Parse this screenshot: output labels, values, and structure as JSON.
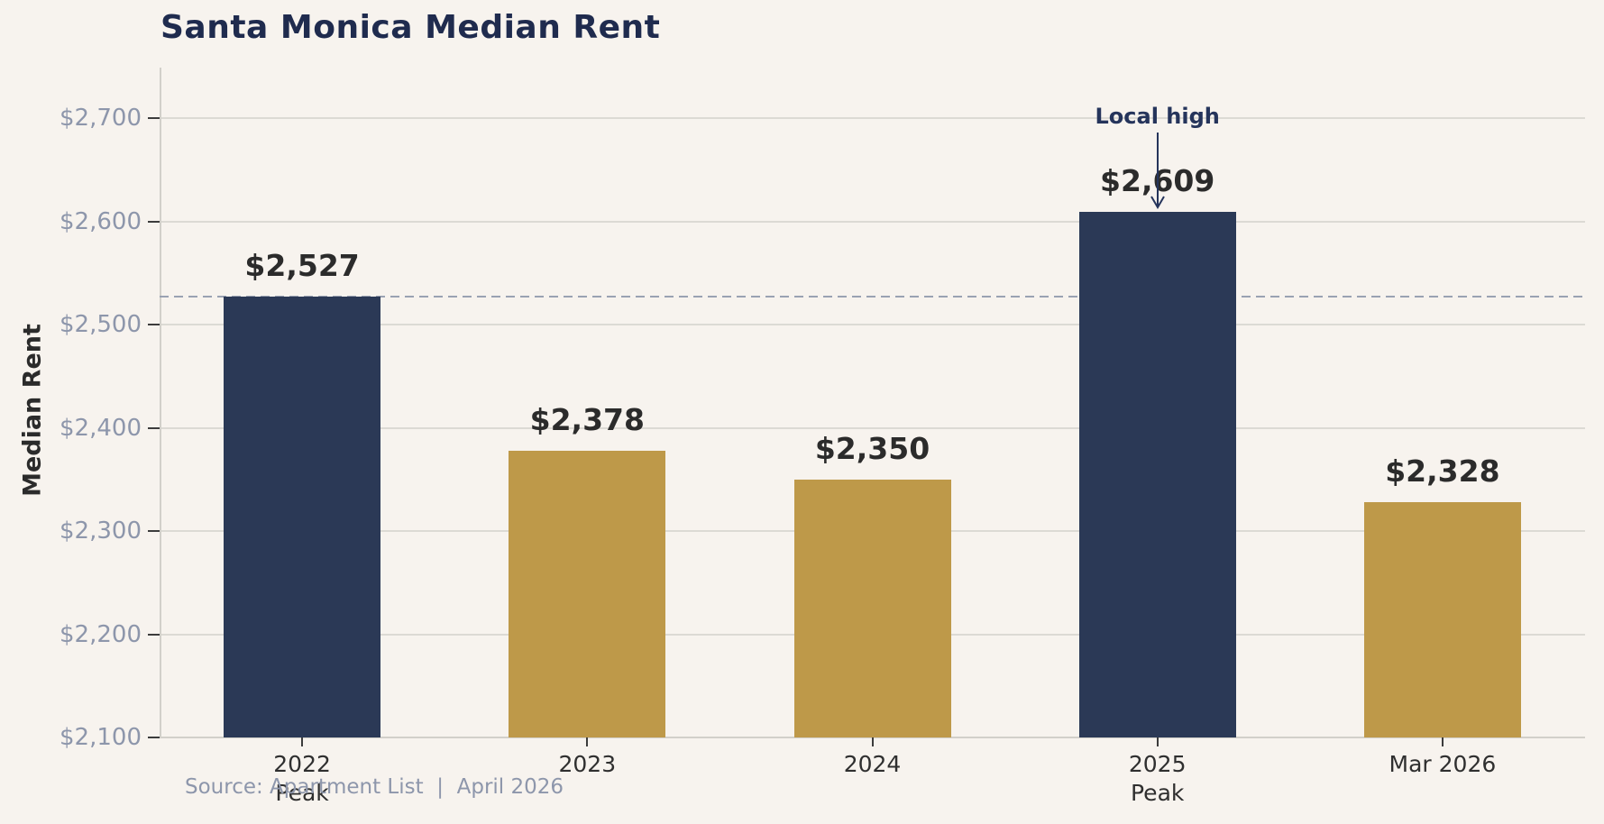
{
  "title": "Santa Monica Median Rent",
  "source_note": "Source: Apartment List  |  April 2026",
  "colors": {
    "background": "#f7f3ee",
    "navy": "#2b3956",
    "gold": "#be9949",
    "title_text": "#1f2b4e",
    "ytick_text": "#8d96ab",
    "xtick_text": "#2f2f2f",
    "value_text": "#2b2b2b",
    "annotation_text": "#25345b",
    "gridline": "#dcdad4",
    "spine": "#d2d0ca",
    "tick_mark": "#3c3c3c",
    "dashed_line": "#9aa2b2"
  },
  "chart_data": {
    "type": "bar",
    "title": "Santa Monica Median Rent",
    "xlabel": "",
    "ylabel": "Median Rent",
    "categories": [
      "2022",
      "2023",
      "2024",
      "2025",
      "Mar 2026"
    ],
    "category_sublabels": [
      "Peak",
      "",
      "",
      "Peak",
      ""
    ],
    "values": [
      2527,
      2378,
      2350,
      2609,
      2328
    ],
    "value_labels": [
      "$2,527",
      "$2,378",
      "$2,350",
      "$2,609",
      "$2,328"
    ],
    "bar_color_roles": [
      "navy",
      "gold",
      "gold",
      "navy",
      "gold"
    ],
    "ylim": [
      2100,
      2749
    ],
    "yticks": [
      {
        "value": 2100,
        "label": "$2,100"
      },
      {
        "value": 2200,
        "label": "$2,200"
      },
      {
        "value": 2300,
        "label": "$2,300"
      },
      {
        "value": 2400,
        "label": "$2,400"
      },
      {
        "value": 2500,
        "label": "$2,500"
      },
      {
        "value": 2600,
        "label": "$2,600"
      },
      {
        "value": 2700,
        "label": "$2,700"
      }
    ],
    "grid": "horizontal",
    "legend": "none",
    "reference_line": {
      "value": 2527,
      "style": "dashed"
    },
    "annotation": {
      "text": "Local high",
      "category_index": 3
    }
  }
}
